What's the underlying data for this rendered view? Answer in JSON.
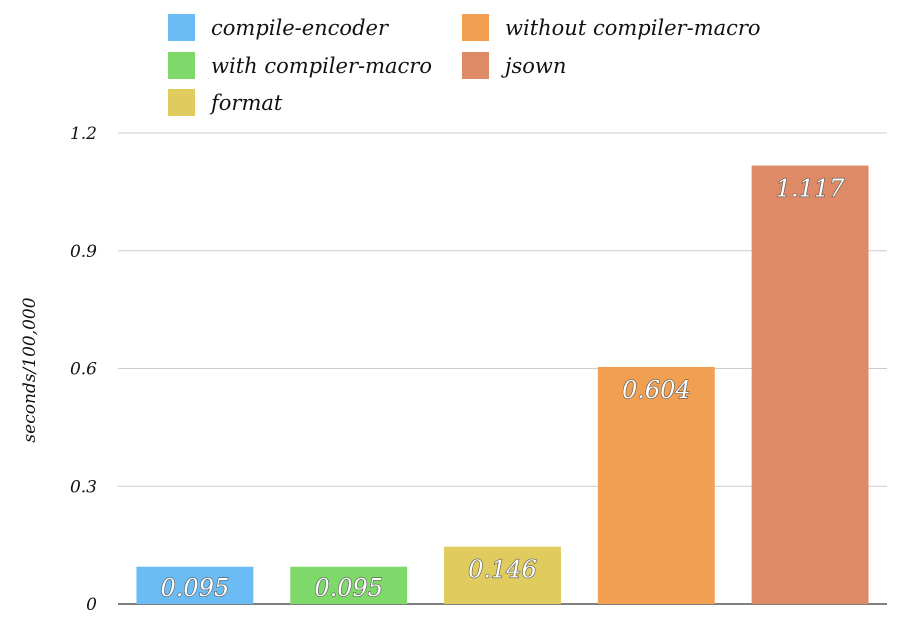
{
  "chart_data": {
    "type": "bar",
    "title": "",
    "xlabel": "",
    "ylabel": "seconds/100,000",
    "ylim": [
      0,
      1.2
    ],
    "yticks": [
      0,
      0.3,
      0.6,
      0.9,
      1.2
    ],
    "ytick_labels": [
      "0",
      "0.3",
      "0.6",
      "0.9",
      "1.2"
    ],
    "grid": true,
    "legend_position": "top",
    "series": [
      {
        "name": "compile-encoder",
        "value": 0.095,
        "label": "0.095",
        "color": "#6bbcf5"
      },
      {
        "name": "with compiler-macro",
        "value": 0.095,
        "label": "0.095",
        "color": "#7ed96a"
      },
      {
        "name": "format",
        "value": 0.146,
        "label": "0.146",
        "color": "#e0cc5e"
      },
      {
        "name": "without compiler-macro",
        "value": 0.604,
        "label": "0.604",
        "color": "#f0a050"
      },
      {
        "name": "jsown",
        "value": 1.117,
        "label": "1.117",
        "color": "#de8a66"
      }
    ]
  }
}
